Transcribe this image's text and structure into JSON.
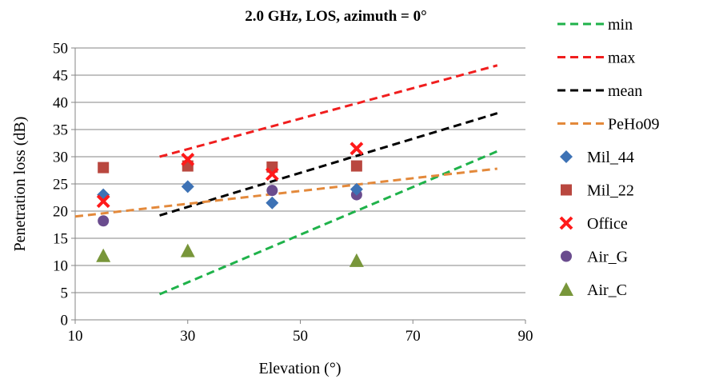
{
  "chart_data": {
    "type": "scatter",
    "title": "2.0 GHz, LOS, azimuth = 0°",
    "xlabel": "Elevation (°)",
    "ylabel": "Penetration loss (dB)",
    "xlim": [
      10,
      90
    ],
    "ylim": [
      0,
      50
    ],
    "xticks": [
      10,
      30,
      50,
      70,
      90
    ],
    "yticks": [
      0,
      5,
      10,
      15,
      20,
      25,
      30,
      35,
      40,
      45,
      50
    ],
    "grid": "horizontal",
    "legend_position": "right",
    "series": [
      {
        "name": "min",
        "kind": "dashed-line",
        "color": "#1fb24a",
        "x": [
          25,
          85
        ],
        "y": [
          4.7,
          31
        ]
      },
      {
        "name": "max",
        "kind": "dashed-line",
        "color": "#f01e1e",
        "x": [
          25,
          85
        ],
        "y": [
          30,
          46.8
        ]
      },
      {
        "name": "mean",
        "kind": "dashed-line",
        "color": "#000000",
        "x": [
          25,
          85
        ],
        "y": [
          19.2,
          38
        ]
      },
      {
        "name": "PeHo09",
        "kind": "dashed-line",
        "color": "#e3893b",
        "x": [
          10,
          85
        ],
        "y": [
          19,
          27.8
        ]
      },
      {
        "name": "Mil_44",
        "kind": "marker",
        "marker": "diamond",
        "color": "#3d72b5",
        "x": [
          15,
          30,
          45,
          60
        ],
        "y": [
          23,
          24.5,
          21.5,
          24
        ]
      },
      {
        "name": "Mil_22",
        "kind": "marker",
        "marker": "square",
        "color": "#b9473f",
        "x": [
          15,
          30,
          45,
          60
        ],
        "y": [
          28,
          28.3,
          28.1,
          28.3
        ]
      },
      {
        "name": "Office",
        "kind": "marker",
        "marker": "x",
        "color": "#ff1a1a",
        "x": [
          15,
          30,
          45,
          60
        ],
        "y": [
          21.8,
          29.5,
          26.8,
          31.5
        ]
      },
      {
        "name": "Air_G",
        "kind": "marker",
        "marker": "circle",
        "color": "#6a4c8e",
        "x": [
          15,
          30,
          45,
          60
        ],
        "y": [
          18.2,
          28.5,
          23.8,
          23
        ]
      },
      {
        "name": "Air_C",
        "kind": "marker",
        "marker": "triangle",
        "color": "#78963a",
        "x": [
          15,
          30,
          60
        ],
        "y": [
          11.8,
          12.7,
          10.9
        ]
      }
    ]
  }
}
